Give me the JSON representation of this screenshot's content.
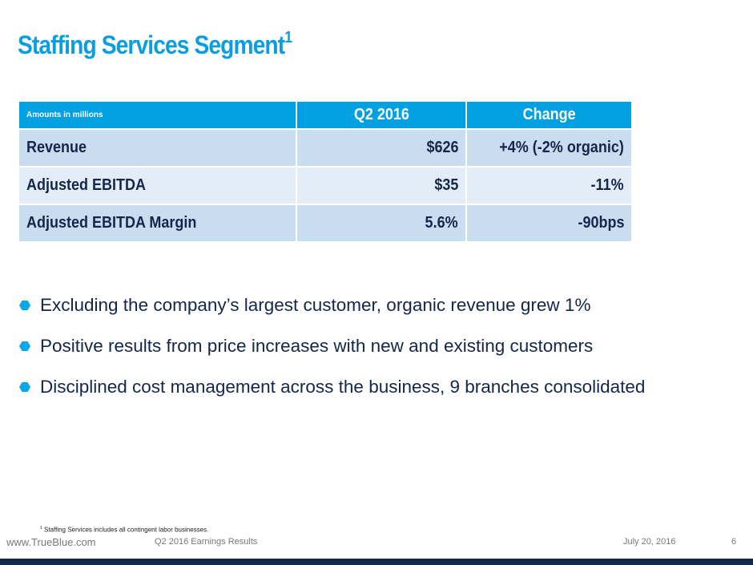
{
  "title": {
    "text": "Staffing Services Segment",
    "sup": "1"
  },
  "table": {
    "header": {
      "label": "Amounts in millions",
      "col1": "Q2 2016",
      "col2": "Change"
    },
    "rows": [
      {
        "label": "Revenue",
        "value": "$626",
        "change": "+4% (-2% organic)"
      },
      {
        "label": "Adjusted EBITDA",
        "value": "$35",
        "change": "-11%"
      },
      {
        "label": "Adjusted EBITDA Margin",
        "value": "5.6%",
        "change": "-90bps"
      }
    ]
  },
  "bullets": [
    "Excluding the company’s largest customer, organic revenue grew 1%",
    "Positive results from price increases with new and existing customers",
    "Disciplined cost management across the business, 9 branches consolidated"
  ],
  "footnote": {
    "sup": "1",
    "text": "Staffing Services includes all contingent labor businesses."
  },
  "footer": {
    "website": "www.TrueBlue.com",
    "deck": "Q2 2016 Earnings Results",
    "date": "July 20, 2016",
    "page": "6"
  },
  "colors": {
    "accent": "#00a0e1",
    "text": "#14264a",
    "bar": "#13294b"
  }
}
